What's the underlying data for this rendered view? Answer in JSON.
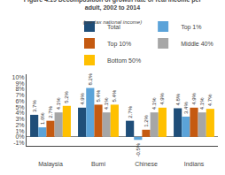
{
  "chart_data": {
    "type": "bar",
    "title": "Figure 4.19 Decomposition of growth rate of real income per\nadult, 2002 to 2014",
    "subtitle": "(pre-tax national income)",
    "categories": [
      "Malaysia",
      "Bumi",
      "Chinese",
      "Indians"
    ],
    "series": [
      {
        "name": "Total",
        "color": "#1f4e79",
        "values": [
          3.7,
          4.9,
          2.7,
          4.8
        ],
        "value_labels": [
          "3.7%",
          "4.9%",
          "2.7%",
          "4.8%"
        ]
      },
      {
        "name": "Top 1%",
        "color": "#5ba3d9",
        "values": [
          1.6,
          8.2,
          -0.5,
          3.4
        ],
        "value_labels": [
          "1.6%",
          "8.2%",
          "-0.5%",
          "3.4%"
        ]
      },
      {
        "name": "Top 10%",
        "color": "#c55a11",
        "values": [
          2.7,
          5.4,
          1.2,
          4.9
        ],
        "value_labels": [
          "2.7%",
          "5.4%",
          "1.2%",
          "4.9%"
        ]
      },
      {
        "name": "Middle 40%",
        "color": "#a6a6a6",
        "values": [
          4.1,
          4.1,
          4.1,
          4.1
        ],
        "value_labels": [
          "4.1%",
          "4.1%",
          "4.1%",
          "4.1%"
        ]
      },
      {
        "name": "Bottom 50%",
        "color": "#ffc000",
        "values": [
          5.2,
          5.4,
          4.9,
          4.7
        ],
        "value_labels": [
          "5.2%",
          "5.4%",
          "4.9%",
          "4.7%"
        ]
      }
    ],
    "ylim": [
      -1.5,
      10.5
    ],
    "yticks": [
      {
        "value": -1,
        "label": "-1%"
      },
      {
        "value": 0,
        "label": "0%"
      },
      {
        "value": 1,
        "label": "1%"
      },
      {
        "value": 2,
        "label": "2%"
      },
      {
        "value": 3,
        "label": "3%"
      },
      {
        "value": 4,
        "label": "4%"
      },
      {
        "value": 5,
        "label": "5%"
      },
      {
        "value": 6,
        "label": "6%"
      },
      {
        "value": 7,
        "label": "7%"
      },
      {
        "value": 8,
        "label": "8%"
      },
      {
        "value": 9,
        "label": "9%"
      },
      {
        "value": 10,
        "label": "10%"
      }
    ],
    "grid": false,
    "legend": "upper right",
    "data_labels": true
  }
}
